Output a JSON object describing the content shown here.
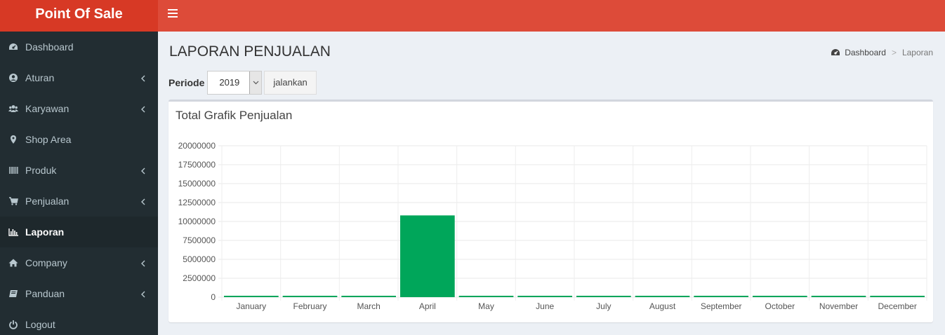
{
  "app": {
    "title": "Point Of Sale"
  },
  "sidebar": {
    "items": [
      {
        "label": "Dashboard",
        "icon": "dashboard-icon",
        "expandable": false,
        "active": false
      },
      {
        "label": "Aturan",
        "icon": "user-circle-icon",
        "expandable": true,
        "active": false
      },
      {
        "label": "Karyawan",
        "icon": "users-icon",
        "expandable": true,
        "active": false
      },
      {
        "label": "Shop Area",
        "icon": "map-marker-icon",
        "expandable": false,
        "active": false
      },
      {
        "label": "Produk",
        "icon": "barcode-icon",
        "expandable": true,
        "active": false
      },
      {
        "label": "Penjualan",
        "icon": "shopping-cart-icon",
        "expandable": true,
        "active": false
      },
      {
        "label": "Laporan",
        "icon": "bar-chart-icon",
        "expandable": false,
        "active": true
      },
      {
        "label": "Company",
        "icon": "home-icon",
        "expandable": true,
        "active": false
      },
      {
        "label": "Panduan",
        "icon": "book-icon",
        "expandable": true,
        "active": false
      },
      {
        "label": "Logout",
        "icon": "power-icon",
        "expandable": false,
        "active": false
      }
    ]
  },
  "page": {
    "title": "LAPORAN PENJUALAN",
    "breadcrumb": {
      "home": "Dashboard",
      "separator": ">",
      "current": "Laporan"
    }
  },
  "filter": {
    "label": "Periode",
    "selected": "2019",
    "button": "jalankan"
  },
  "box": {
    "title": "Total Grafik Penjualan"
  },
  "colors": {
    "accent": "#dd4b39",
    "logo_bg": "#d73925",
    "sidebar": "#222d32",
    "bar": "#00a65a"
  },
  "chart_data": {
    "type": "bar",
    "categories": [
      "January",
      "February",
      "March",
      "April",
      "May",
      "June",
      "July",
      "August",
      "September",
      "October",
      "November",
      "December"
    ],
    "values": [
      0,
      0,
      0,
      10800000,
      0,
      0,
      0,
      0,
      0,
      0,
      0,
      0
    ],
    "yticks": [
      "20000000",
      "17500000",
      "15000000",
      "12500000",
      "10000000",
      "7500000",
      "5000000",
      "2500000",
      "0"
    ],
    "ylim": [
      0,
      20000000
    ],
    "grid": true,
    "title": "",
    "xlabel": "",
    "ylabel": ""
  }
}
